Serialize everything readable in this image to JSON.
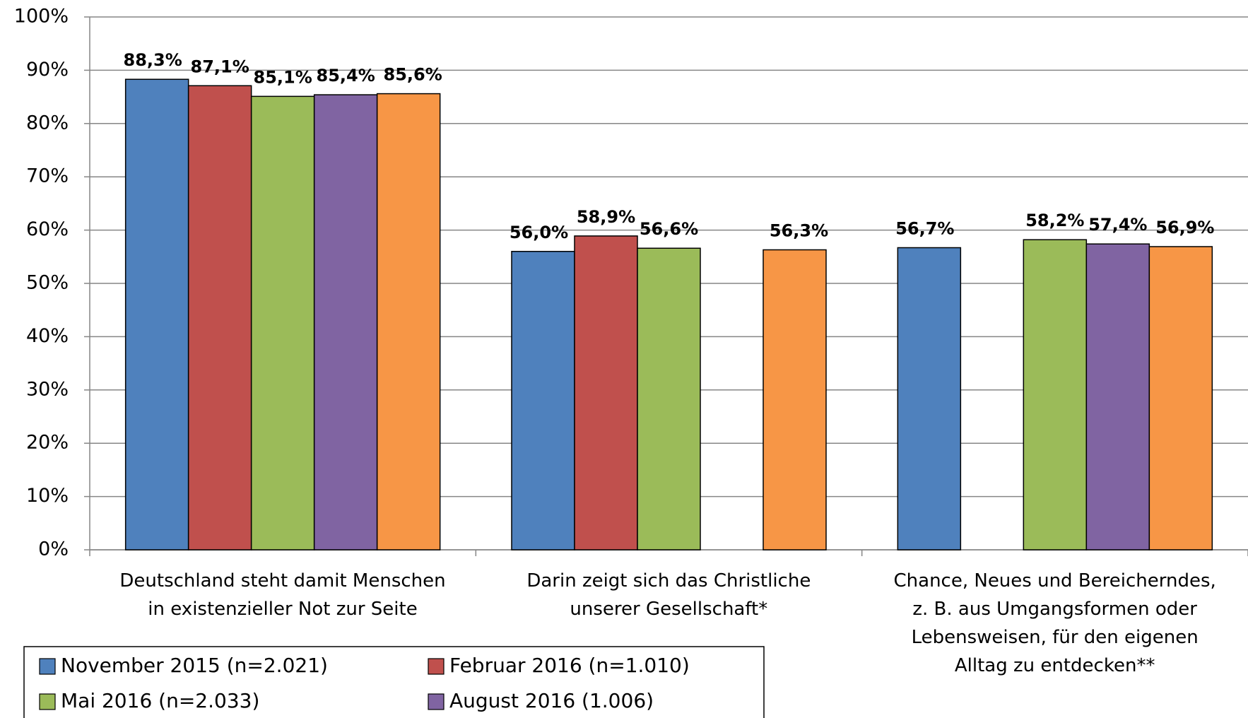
{
  "chart_data": {
    "type": "bar",
    "categories": [
      "Deutschland steht damit Menschen\nin existenzieller Not zur Seite",
      "Darin zeigt sich das Christliche\nunserer Gesellschaft*",
      "Chance, Neues und Bereicherndes,\nz. B. aus Umgangsformen oder\nLebensweisen, für den eigenen\nAlltag zu entdecken**"
    ],
    "series": [
      {
        "name": "November 2015 (n=2.021)",
        "color": "#4f81bd",
        "values": [
          88.3,
          56.0,
          56.7
        ],
        "value_labels": [
          "88,3%",
          "56,0%",
          "56,7%"
        ]
      },
      {
        "name": "Februar 2016 (n=1.010)",
        "color": "#c0504d",
        "values": [
          87.1,
          58.9,
          null
        ],
        "value_labels": [
          "87,1%",
          "58,9%",
          null
        ]
      },
      {
        "name": "Mai 2016 (n=2.033)",
        "color": "#9bbb59",
        "values": [
          85.1,
          56.6,
          58.2
        ],
        "value_labels": [
          "85,1%",
          "56,6%",
          "58,2%"
        ]
      },
      {
        "name": "August 2016 (1.006)",
        "color": "#8064a2",
        "values": [
          85.4,
          null,
          57.4
        ],
        "value_labels": [
          "85,4%",
          null,
          "57,4%"
        ]
      },
      {
        "color": "#f79646",
        "values": [
          85.6,
          56.3,
          56.9
        ],
        "value_labels": [
          "85,6%",
          "56,3%",
          "56,9%"
        ]
      }
    ],
    "ylim": [
      0,
      100
    ],
    "yticks": [
      {
        "value": 0,
        "label": "0%"
      },
      {
        "value": 10,
        "label": "10%"
      },
      {
        "value": 20,
        "label": "20%"
      },
      {
        "value": 30,
        "label": "30%"
      },
      {
        "value": 40,
        "label": "40%"
      },
      {
        "value": 50,
        "label": "50%"
      },
      {
        "value": 60,
        "label": "60%"
      },
      {
        "value": 70,
        "label": "70%"
      },
      {
        "value": 80,
        "label": "80%"
      },
      {
        "value": 90,
        "label": "90%"
      },
      {
        "value": 100,
        "label": "100%"
      }
    ],
    "grid": true
  }
}
